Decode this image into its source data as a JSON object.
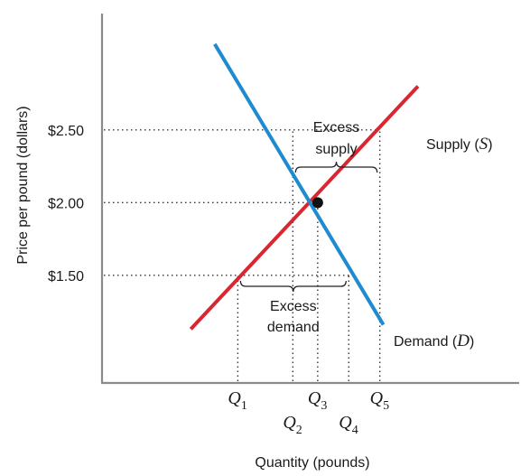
{
  "chart_data": {
    "type": "line",
    "xlabel": "Quantity (pounds)",
    "ylabel": "Price per pound (dollars)",
    "y_ticks": [
      {
        "label": "$2.50",
        "value": 2.5
      },
      {
        "label": "$2.00",
        "value": 2.0
      },
      {
        "label": "$1.50",
        "value": 1.5
      }
    ],
    "ylim": [
      0.76,
      3.3
    ],
    "x_ticks": [
      {
        "name": "Q",
        "sub": "1",
        "value": 1.53,
        "row": 1
      },
      {
        "name": "Q",
        "sub": "2",
        "value": 2.15,
        "row": 2
      },
      {
        "name": "Q",
        "sub": "3",
        "value": 2.43,
        "row": 1
      },
      {
        "name": "Q",
        "sub": "4",
        "value": 2.78,
        "row": 2
      },
      {
        "name": "Q",
        "sub": "5",
        "value": 3.13,
        "row": 1
      }
    ],
    "xlim": [
      0,
      4.7
    ],
    "series": [
      {
        "key": "supply",
        "name_text": "Supply (",
        "name_sym": "S",
        "name_close": ")",
        "color": "#d92630",
        "points": [
          {
            "x": 1.0,
            "y": 1.13
          },
          {
            "x": 3.56,
            "y": 2.8
          }
        ]
      },
      {
        "key": "demand",
        "name_text": "Demand (",
        "name_sym": "D",
        "name_close": ")",
        "color": "#1e8bd0",
        "points": [
          {
            "x": 1.27,
            "y": 3.09
          },
          {
            "x": 3.17,
            "y": 1.16
          }
        ]
      }
    ],
    "equilibrium": {
      "x": 2.43,
      "y": 2.0
    },
    "annotations": {
      "excess_supply": [
        "Excess",
        "supply"
      ],
      "excess_demand": [
        "Excess",
        "demand"
      ]
    },
    "grid": false
  }
}
